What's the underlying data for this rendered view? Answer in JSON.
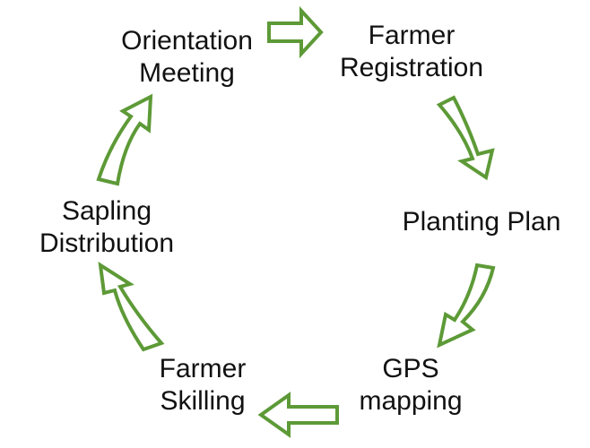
{
  "colors": {
    "arrow_stroke": "#5d9a37",
    "text": "#111111"
  },
  "steps": [
    {
      "line1": "Orientation",
      "line2": "Meeting"
    },
    {
      "line1": "Farmer",
      "line2": "Registration"
    },
    {
      "line1": "Planting Plan",
      "line2": ""
    },
    {
      "line1": "GPS",
      "line2": "mapping"
    },
    {
      "line1": "Farmer",
      "line2": "Skilling"
    },
    {
      "line1": "Sapling",
      "line2": "Distribution"
    }
  ],
  "arrows": [
    {
      "name": "arrow-right-icon"
    },
    {
      "name": "arrow-down-right-icon"
    },
    {
      "name": "arrow-down-left-icon"
    },
    {
      "name": "arrow-left-icon"
    },
    {
      "name": "arrow-up-left-icon"
    },
    {
      "name": "arrow-up-right-icon"
    }
  ]
}
